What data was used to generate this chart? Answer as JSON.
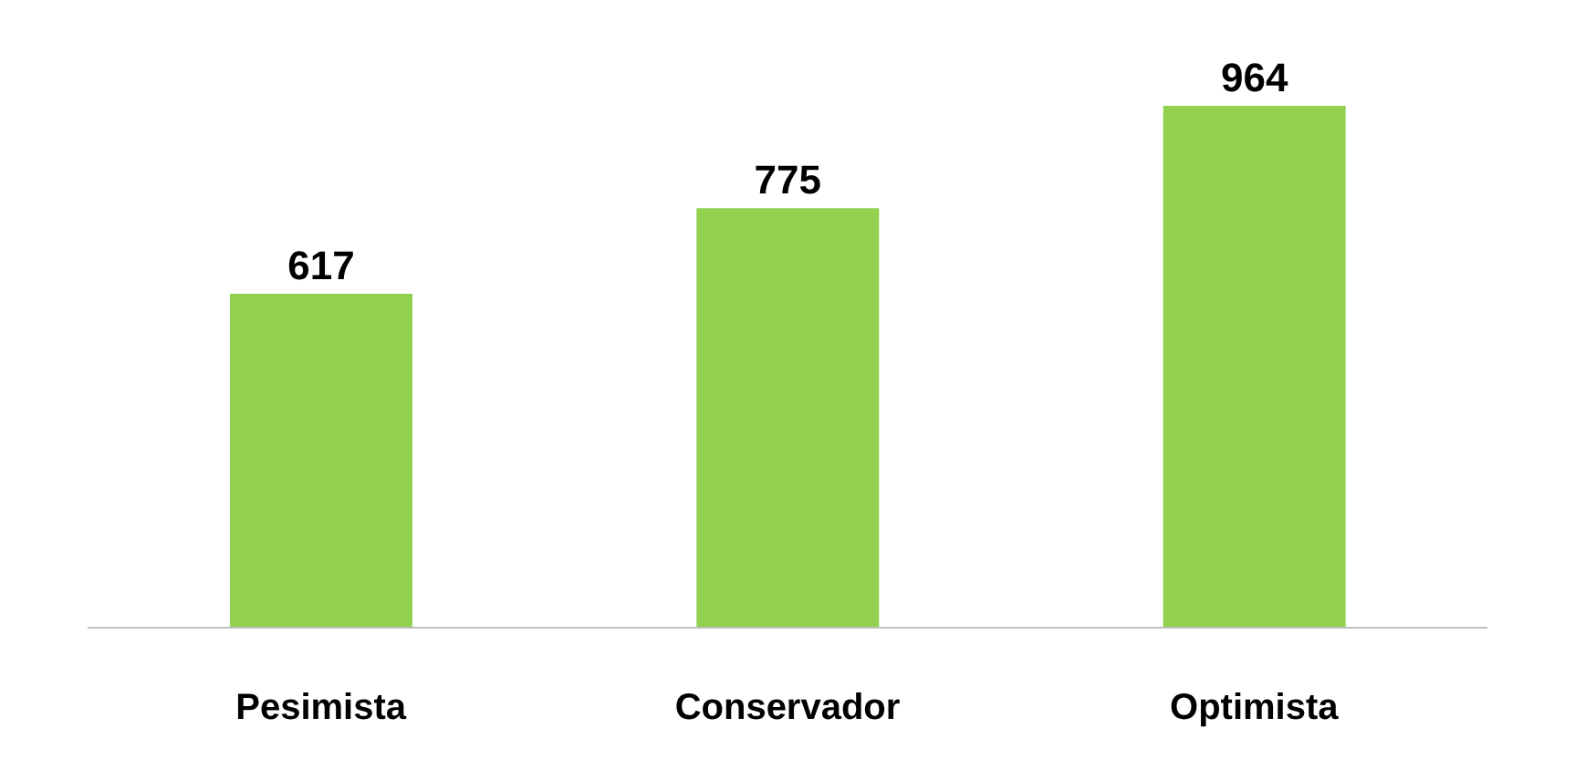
{
  "chart_data": {
    "type": "bar",
    "categories": [
      "Pesimista",
      "Conservador",
      "Optimista"
    ],
    "values": [
      617,
      775,
      964
    ],
    "color": "#92d050",
    "data_labels": true
  }
}
